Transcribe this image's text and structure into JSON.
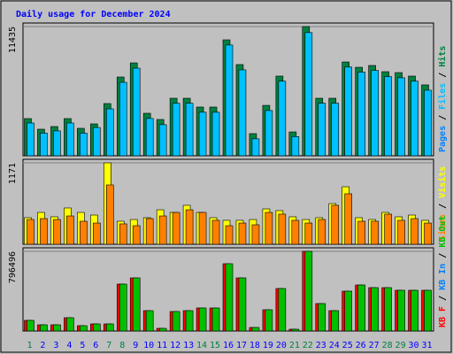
{
  "chart_data": {
    "type": "bar",
    "title": "Daily usage for December 2024",
    "legend_separator": " / ",
    "categories": [
      "1",
      "2",
      "3",
      "4",
      "5",
      "6",
      "7",
      "8",
      "9",
      "10",
      "11",
      "12",
      "13",
      "14",
      "15",
      "16",
      "17",
      "18",
      "19",
      "20",
      "21",
      "22",
      "23",
      "24",
      "25",
      "26",
      "27",
      "28",
      "29",
      "30",
      "31"
    ],
    "category_colors": [
      "#008040",
      "#0000ff",
      "#0000ff",
      "#0000ff",
      "#0000ff",
      "#0000ff",
      "#008040",
      "#008040",
      "#0000ff",
      "#0000ff",
      "#0000ff",
      "#0000ff",
      "#0000ff",
      "#008040",
      "#008040",
      "#0000ff",
      "#0000ff",
      "#0000ff",
      "#0000ff",
      "#0000ff",
      "#008040",
      "#008040",
      "#0000ff",
      "#0000ff",
      "#0000ff",
      "#0000ff",
      "#0000ff",
      "#008040",
      "#008040",
      "#0000ff",
      "#0000ff"
    ],
    "panels": [
      {
        "ylim": [
          0,
          11435
        ],
        "yticks": [
          11435
        ],
        "reverse": true,
        "series": [
          {
            "name": "Pages",
            "color": "#0080ff",
            "values": [
              null,
              null,
              null,
              null,
              null,
              null,
              null,
              null,
              null,
              null,
              null,
              null,
              null,
              null,
              null,
              null,
              null,
              null,
              null,
              null,
              null,
              null,
              null,
              null,
              null,
              null,
              null,
              null,
              null,
              null,
              null
            ]
          },
          {
            "name": "Files",
            "color": "#00c0ff",
            "values": [
              2900,
              2000,
              2200,
              2900,
              2000,
              2500,
              4150,
              6500,
              7750,
              3300,
              2750,
              4650,
              4650,
              3850,
              3850,
              9800,
              7600,
              1500,
              4000,
              6600,
              1700,
              10900,
              4650,
              4650,
              7850,
              7400,
              7550,
              7000,
              6900,
              6600,
              5800
            ]
          },
          {
            "name": "Hits",
            "color": "#008040",
            "values": [
              3290,
              2350,
              2585,
              3290,
              2430,
              2820,
              4620,
              6970,
              8220,
              3760,
              3210,
              5090,
              5090,
              4310,
              4310,
              10260,
              8070,
              1960,
              4460,
              7050,
              2110,
              11435,
              5090,
              5090,
              8300,
              7830,
              7990,
              7440,
              7360,
              7050,
              6270
            ]
          }
        ]
      },
      {
        "ylim": [
          0,
          1171
        ],
        "yticks": [
          1171
        ],
        "reverse": true,
        "series": [
          {
            "name": "Sites",
            "color": "#ff8000",
            "values": [
              356,
              369,
              356,
              407,
              331,
              305,
              853,
              293,
              267,
              369,
              407,
              458,
              496,
              458,
              344,
              267,
              305,
              280,
              458,
              433,
              344,
              305,
              356,
              560,
              726,
              331,
              331,
              433,
              344,
              369,
              305
            ]
          },
          {
            "name": "Visits",
            "color": "#ffff00",
            "values": [
              382,
              458,
              395,
              522,
              458,
              420,
              1171,
              331,
              356,
              382,
              496,
              458,
              560,
              458,
              382,
              344,
              344,
              356,
              509,
              484,
              395,
              356,
              382,
              585,
              827,
              382,
              356,
              458,
              395,
              420,
              344
            ]
          }
        ]
      },
      {
        "ylim": [
          0,
          796496
        ],
        "yticks": [
          796496
        ],
        "reverse": false,
        "series": [
          {
            "name": "KB F",
            "color": "#ff0000",
            "values": [
              106199,
              61950,
              61950,
              132750,
              53100,
              70800,
              70800,
              469000,
              531000,
              203500,
              26550,
              194700,
              203500,
              230100,
              230100,
              672600,
              531000,
              35400,
              212400,
              424800,
              17700,
              796496,
              274300,
              203500,
              398200,
              460200,
              433600,
              433600,
              407100,
              407100,
              407100
            ]
          },
          {
            "name": "KB In",
            "color": "#0080ff",
            "values": [
              null,
              null,
              null,
              null,
              null,
              null,
              null,
              null,
              null,
              null,
              null,
              null,
              null,
              null,
              null,
              null,
              null,
              null,
              null,
              null,
              null,
              null,
              null,
              null,
              null,
              null,
              null,
              null,
              null,
              null,
              null
            ]
          },
          {
            "name": "KB Out",
            "color": "#00c000",
            "values": [
              106199,
              61950,
              61950,
              132750,
              53100,
              70800,
              70800,
              469000,
              531000,
              203500,
              26550,
              194700,
              203500,
              230100,
              230100,
              672600,
              531000,
              35400,
              212400,
              424800,
              17700,
              796496,
              274300,
              203500,
              398200,
              460200,
              433600,
              433600,
              407100,
              407100,
              407100
            ]
          }
        ]
      }
    ]
  }
}
